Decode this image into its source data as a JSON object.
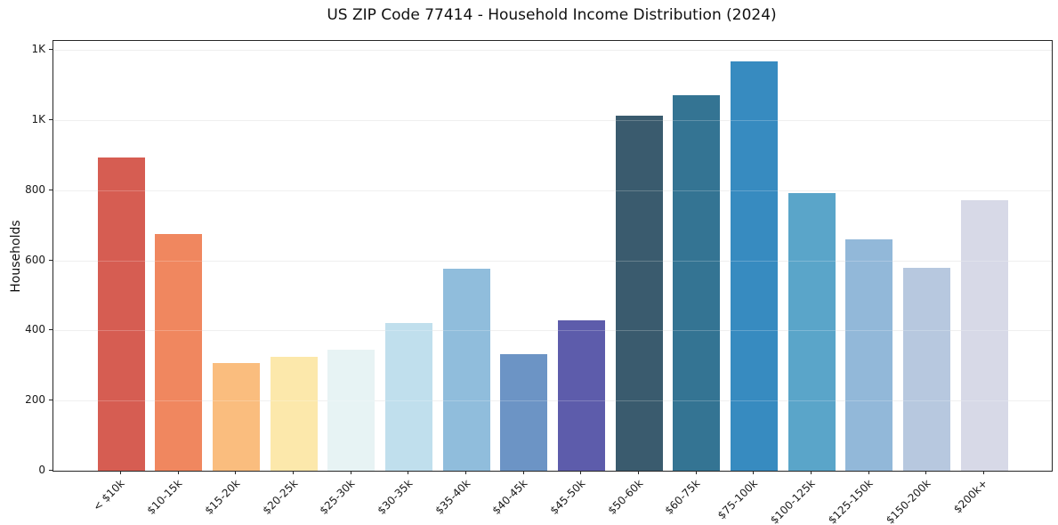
{
  "chart_data": {
    "type": "bar",
    "title": "US ZIP Code 77414 - Household Income Distribution (2024)",
    "xlabel": "",
    "ylabel": "Households",
    "categories": [
      "< $10k",
      "$10-15k",
      "$15-20k",
      "$20-25k",
      "$25-30k",
      "$30-35k",
      "$35-40k",
      "$40-45k",
      "$45-50k",
      "$50-60k",
      "$60-75k",
      "$75-100k",
      "$100-125k",
      "$125-150k",
      "$150-200k",
      "$200k+"
    ],
    "values": [
      894,
      676,
      308,
      325,
      344,
      422,
      577,
      333,
      429,
      1013,
      1071,
      1168,
      793,
      660,
      580,
      771
    ],
    "bar_colors": [
      "#d65d52",
      "#f0875f",
      "#fabd7e",
      "#fce8ab",
      "#e7f3f4",
      "#c0dfed",
      "#90bddc",
      "#6c94c5",
      "#5d5cab",
      "#3a5b6e",
      "#347493",
      "#378bc0",
      "#5aa5c9",
      "#92b8d9",
      "#b7c8df",
      "#d7d9e7"
    ],
    "ylim": [
      0,
      1226
    ],
    "yticks": {
      "values": [
        0,
        200,
        400,
        600,
        800,
        1000,
        1200
      ],
      "labels": [
        "0",
        "200",
        "400",
        "600",
        "800",
        "1K",
        "1K"
      ]
    },
    "grid": "horizontal-only",
    "legend": "none",
    "background_color": "#ffffff",
    "axis_color": "#262626"
  }
}
